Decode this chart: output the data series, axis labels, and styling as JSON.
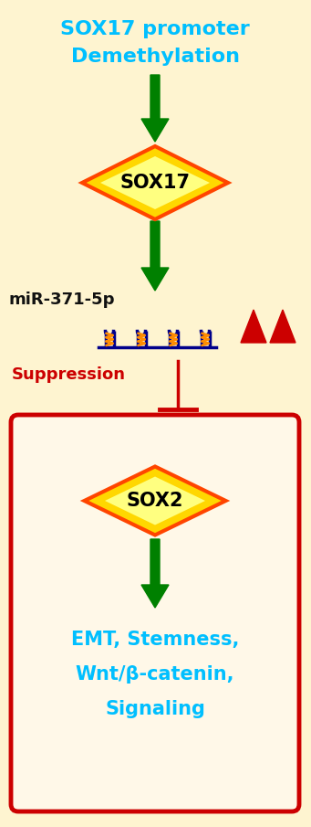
{
  "bg_color": "#FEF4D0",
  "title_text1": "SOX17 promoter",
  "title_text2": "Demethylation",
  "title_color": "#00BFFF",
  "sox17_label": "SOX17",
  "sox2_label": "SOX2",
  "mir_label": "miR-371-5p",
  "suppression_label": "Suppression",
  "emt_line1": "EMT, Stemness,",
  "emt_line2": "Wnt/β-catenin,",
  "emt_line3": "Signaling",
  "emt_color": "#00BFFF",
  "diamond_fill_center": "#FFFF80",
  "diamond_fill_edge": "#FFD700",
  "diamond_edge": "#FF4500",
  "arrow_color": "#008000",
  "suppress_line_color": "#CC0000",
  "box_edge_color": "#CC0000",
  "box_fill_color": "#FFF8E8",
  "mir_color": "#111111",
  "suppression_color": "#CC0000",
  "hairpin_stem_color": "#00008B",
  "hairpin_loop_color": "#FF8C00",
  "upward_arrow_color": "#CC0000",
  "figw": 3.41,
  "figh": 9.05,
  "dpi": 100
}
